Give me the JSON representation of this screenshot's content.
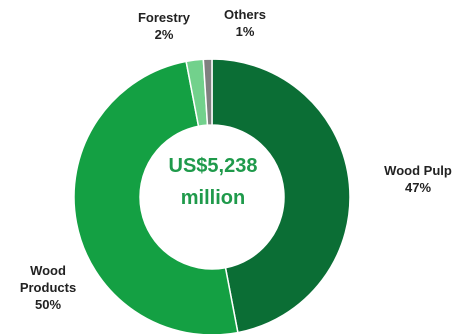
{
  "chart_data": {
    "type": "pie",
    "title": "",
    "center_text": [
      "US$5,238",
      "million"
    ],
    "center_color": "#1f9a4b",
    "slices": [
      {
        "name": "Wood Pulp",
        "label_lines": [
          "Wood Pulp",
          "47%"
        ],
        "value": 47,
        "color": "#0b6e35"
      },
      {
        "name": "Wood Products",
        "label_lines": [
          "Wood",
          "Products",
          "50%"
        ],
        "value": 50,
        "color": "#14a043"
      },
      {
        "name": "Forestry",
        "label_lines": [
          "Forestry",
          "2%"
        ],
        "value": 2,
        "color": "#72d18c"
      },
      {
        "name": "Others",
        "label_lines": [
          "Others",
          "1%"
        ],
        "value": 1,
        "color": "#808080"
      }
    ]
  }
}
